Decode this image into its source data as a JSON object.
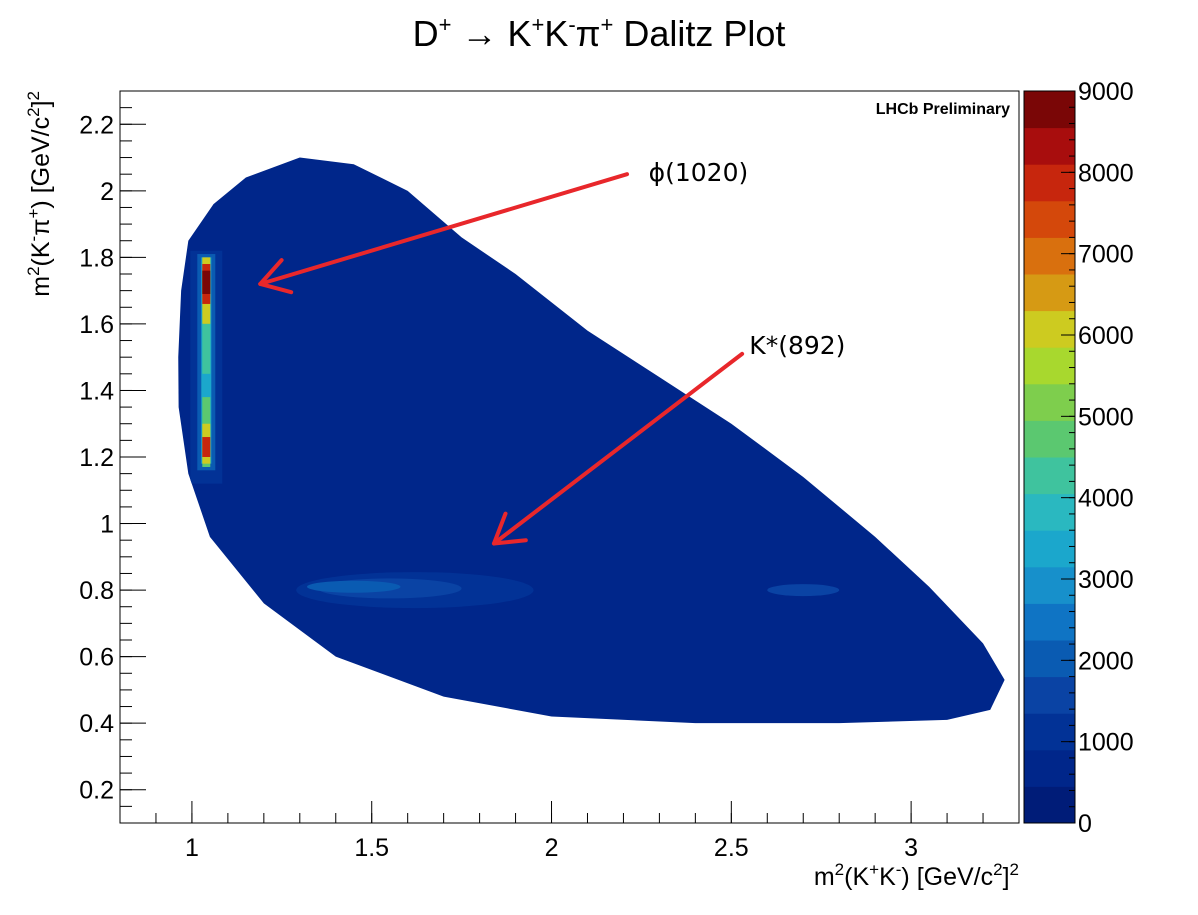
{
  "chart_data": {
    "type": "heatmap",
    "title": {
      "text": "D",
      "sup1": "+",
      "arrow": " →  ",
      "k1": "K",
      "sup2": "+",
      "k2": "K",
      "sup3": "-",
      "pi": "π",
      "sup4": "+",
      "rest": " Dalitz Plot"
    },
    "xlabel": {
      "m": "m",
      "sup_a": "2",
      "open": "(K",
      "sup_b": "+",
      "k": "K",
      "sup_c": "-",
      "close": ") [GeV/c",
      "sup_d": "2",
      "end": "]",
      "sup_e": "2"
    },
    "ylabel": {
      "m": "m",
      "sup_a": "2",
      "open": "(K",
      "sup_b": "-",
      "pi": "π",
      "sup_c": "+",
      "close": ") [GeV/c",
      "sup_d": "2",
      "end": "]",
      "sup_e": "2"
    },
    "xlim": [
      0.8,
      3.3
    ],
    "ylim": [
      0.1,
      2.3
    ],
    "x_ticks": [
      1,
      1.5,
      2,
      2.5,
      3
    ],
    "x_tick_labels": [
      "1",
      "1.5",
      "2",
      "2.5",
      "3"
    ],
    "y_ticks": [
      0.2,
      0.4,
      0.6,
      0.8,
      1,
      1.2,
      1.4,
      1.6,
      1.8,
      2,
      2.2
    ],
    "y_tick_labels": [
      "0.2",
      "0.4",
      "0.6",
      "0.8",
      "1",
      "1.2",
      "1.4",
      "1.6",
      "1.8",
      "2",
      "2.2"
    ],
    "z_range": [
      0,
      9000
    ],
    "z_ticks": [
      0,
      1000,
      2000,
      3000,
      4000,
      5000,
      6000,
      7000,
      8000,
      9000
    ],
    "z_tick_labels": [
      "0",
      "1000",
      "2000",
      "3000",
      "4000",
      "5000",
      "6000",
      "7000",
      "8000",
      "9000"
    ],
    "colorscale": [
      "#001c78",
      "#00268a",
      "#023296",
      "#0a43a4",
      "#0a5bb2",
      "#0f74c4",
      "#1790cb",
      "#1ba7cc",
      "#2ab8c0",
      "#3fc39e",
      "#5bc870",
      "#7ece4d",
      "#a8d82e",
      "#cdcb20",
      "#d69a14",
      "#d9700e",
      "#d4480b",
      "#c7260d",
      "#a80d0d",
      "#7a0606"
    ],
    "grid": false,
    "watermark": "LHCb Preliminary",
    "phase_space_boundary": [
      [
        0.962,
        1.5
      ],
      [
        0.97,
        1.7
      ],
      [
        0.99,
        1.85
      ],
      [
        1.06,
        1.96
      ],
      [
        1.15,
        2.04
      ],
      [
        1.3,
        2.1
      ],
      [
        1.45,
        2.08
      ],
      [
        1.6,
        2.0
      ],
      [
        1.75,
        1.86
      ],
      [
        1.9,
        1.75
      ],
      [
        2.1,
        1.58
      ],
      [
        2.3,
        1.44
      ],
      [
        2.5,
        1.3
      ],
      [
        2.7,
        1.14
      ],
      [
        2.9,
        0.96
      ],
      [
        3.05,
        0.81
      ],
      [
        3.2,
        0.64
      ],
      [
        3.26,
        0.53
      ],
      [
        3.22,
        0.44
      ],
      [
        3.1,
        0.41
      ],
      [
        2.8,
        0.4
      ],
      [
        2.4,
        0.4
      ],
      [
        2.0,
        0.42
      ],
      [
        1.7,
        0.48
      ],
      [
        1.4,
        0.6
      ],
      [
        1.2,
        0.76
      ],
      [
        1.05,
        0.96
      ],
      [
        0.99,
        1.15
      ],
      [
        0.963,
        1.35
      ]
    ],
    "resonance_bands": [
      {
        "name": "φ(1020)",
        "x": 1.04,
        "y_range": [
          1.15,
          1.8
        ],
        "peak_z": 9000,
        "hotspots": [
          {
            "y": 1.73,
            "z": 9000
          },
          {
            "y": 1.55,
            "z": 4000
          },
          {
            "y": 1.22,
            "z": 6500
          }
        ]
      },
      {
        "name": "K*(892)",
        "y": 0.8,
        "x_range": [
          1.28,
          2.8
        ],
        "peak_z": 2500
      }
    ],
    "annotations": [
      {
        "text": "ϕ(1020)",
        "text_x": 2.27,
        "text_y": 2.06,
        "arrow_from": [
          2.21,
          2.05
        ],
        "arrow_to": [
          1.19,
          1.72
        ],
        "color": "#e8272b"
      },
      {
        "text": "K*(892)",
        "text_x": 2.55,
        "text_y": 1.54,
        "arrow_from": [
          2.53,
          1.51
        ],
        "arrow_to": [
          1.84,
          0.94
        ],
        "color": "#e8272b"
      }
    ]
  }
}
